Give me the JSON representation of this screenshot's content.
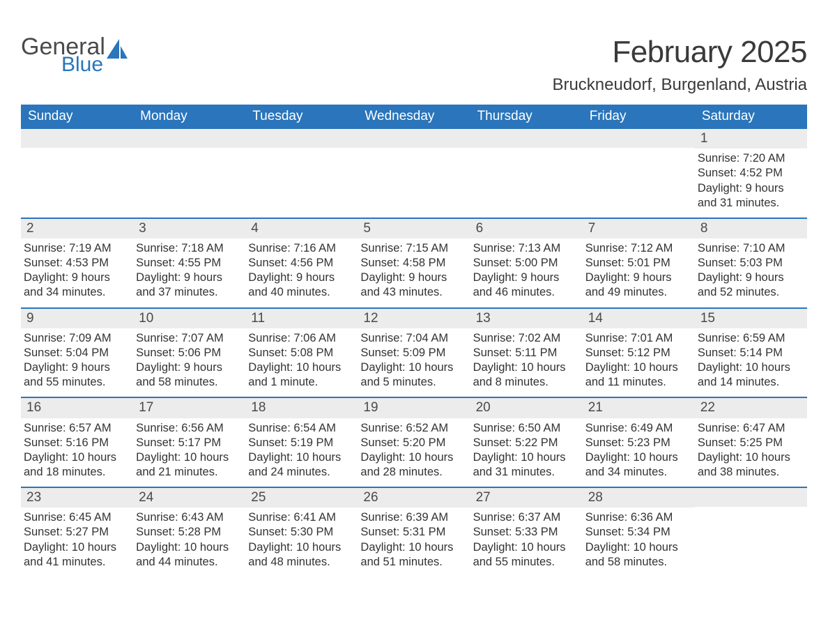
{
  "logo": {
    "word1": "General",
    "word2": "Blue"
  },
  "title": "February 2025",
  "location": "Bruckneudorf, Burgenland, Austria",
  "colors": {
    "brand_blue": "#2a75bb",
    "header_text": "#ffffff",
    "bar_bg": "#ececec",
    "text": "#333333",
    "title_text": "#3a3a3a"
  },
  "fonts": {
    "title_size_pt": 44,
    "location_size_pt": 24,
    "dayheader_size_pt": 19,
    "body_size_pt": 16.5
  },
  "day_headers": [
    "Sunday",
    "Monday",
    "Tuesday",
    "Wednesday",
    "Thursday",
    "Friday",
    "Saturday"
  ],
  "weeks": [
    [
      null,
      null,
      null,
      null,
      null,
      null,
      {
        "n": "1",
        "sr": "Sunrise: 7:20 AM",
        "ss": "Sunset: 4:52 PM",
        "dl": "Daylight: 9 hours and 31 minutes."
      }
    ],
    [
      {
        "n": "2",
        "sr": "Sunrise: 7:19 AM",
        "ss": "Sunset: 4:53 PM",
        "dl": "Daylight: 9 hours and 34 minutes."
      },
      {
        "n": "3",
        "sr": "Sunrise: 7:18 AM",
        "ss": "Sunset: 4:55 PM",
        "dl": "Daylight: 9 hours and 37 minutes."
      },
      {
        "n": "4",
        "sr": "Sunrise: 7:16 AM",
        "ss": "Sunset: 4:56 PM",
        "dl": "Daylight: 9 hours and 40 minutes."
      },
      {
        "n": "5",
        "sr": "Sunrise: 7:15 AM",
        "ss": "Sunset: 4:58 PM",
        "dl": "Daylight: 9 hours and 43 minutes."
      },
      {
        "n": "6",
        "sr": "Sunrise: 7:13 AM",
        "ss": "Sunset: 5:00 PM",
        "dl": "Daylight: 9 hours and 46 minutes."
      },
      {
        "n": "7",
        "sr": "Sunrise: 7:12 AM",
        "ss": "Sunset: 5:01 PM",
        "dl": "Daylight: 9 hours and 49 minutes."
      },
      {
        "n": "8",
        "sr": "Sunrise: 7:10 AM",
        "ss": "Sunset: 5:03 PM",
        "dl": "Daylight: 9 hours and 52 minutes."
      }
    ],
    [
      {
        "n": "9",
        "sr": "Sunrise: 7:09 AM",
        "ss": "Sunset: 5:04 PM",
        "dl": "Daylight: 9 hours and 55 minutes."
      },
      {
        "n": "10",
        "sr": "Sunrise: 7:07 AM",
        "ss": "Sunset: 5:06 PM",
        "dl": "Daylight: 9 hours and 58 minutes."
      },
      {
        "n": "11",
        "sr": "Sunrise: 7:06 AM",
        "ss": "Sunset: 5:08 PM",
        "dl": "Daylight: 10 hours and 1 minute."
      },
      {
        "n": "12",
        "sr": "Sunrise: 7:04 AM",
        "ss": "Sunset: 5:09 PM",
        "dl": "Daylight: 10 hours and 5 minutes."
      },
      {
        "n": "13",
        "sr": "Sunrise: 7:02 AM",
        "ss": "Sunset: 5:11 PM",
        "dl": "Daylight: 10 hours and 8 minutes."
      },
      {
        "n": "14",
        "sr": "Sunrise: 7:01 AM",
        "ss": "Sunset: 5:12 PM",
        "dl": "Daylight: 10 hours and 11 minutes."
      },
      {
        "n": "15",
        "sr": "Sunrise: 6:59 AM",
        "ss": "Sunset: 5:14 PM",
        "dl": "Daylight: 10 hours and 14 minutes."
      }
    ],
    [
      {
        "n": "16",
        "sr": "Sunrise: 6:57 AM",
        "ss": "Sunset: 5:16 PM",
        "dl": "Daylight: 10 hours and 18 minutes."
      },
      {
        "n": "17",
        "sr": "Sunrise: 6:56 AM",
        "ss": "Sunset: 5:17 PM",
        "dl": "Daylight: 10 hours and 21 minutes."
      },
      {
        "n": "18",
        "sr": "Sunrise: 6:54 AM",
        "ss": "Sunset: 5:19 PM",
        "dl": "Daylight: 10 hours and 24 minutes."
      },
      {
        "n": "19",
        "sr": "Sunrise: 6:52 AM",
        "ss": "Sunset: 5:20 PM",
        "dl": "Daylight: 10 hours and 28 minutes."
      },
      {
        "n": "20",
        "sr": "Sunrise: 6:50 AM",
        "ss": "Sunset: 5:22 PM",
        "dl": "Daylight: 10 hours and 31 minutes."
      },
      {
        "n": "21",
        "sr": "Sunrise: 6:49 AM",
        "ss": "Sunset: 5:23 PM",
        "dl": "Daylight: 10 hours and 34 minutes."
      },
      {
        "n": "22",
        "sr": "Sunrise: 6:47 AM",
        "ss": "Sunset: 5:25 PM",
        "dl": "Daylight: 10 hours and 38 minutes."
      }
    ],
    [
      {
        "n": "23",
        "sr": "Sunrise: 6:45 AM",
        "ss": "Sunset: 5:27 PM",
        "dl": "Daylight: 10 hours and 41 minutes."
      },
      {
        "n": "24",
        "sr": "Sunrise: 6:43 AM",
        "ss": "Sunset: 5:28 PM",
        "dl": "Daylight: 10 hours and 44 minutes."
      },
      {
        "n": "25",
        "sr": "Sunrise: 6:41 AM",
        "ss": "Sunset: 5:30 PM",
        "dl": "Daylight: 10 hours and 48 minutes."
      },
      {
        "n": "26",
        "sr": "Sunrise: 6:39 AM",
        "ss": "Sunset: 5:31 PM",
        "dl": "Daylight: 10 hours and 51 minutes."
      },
      {
        "n": "27",
        "sr": "Sunrise: 6:37 AM",
        "ss": "Sunset: 5:33 PM",
        "dl": "Daylight: 10 hours and 55 minutes."
      },
      {
        "n": "28",
        "sr": "Sunrise: 6:36 AM",
        "ss": "Sunset: 5:34 PM",
        "dl": "Daylight: 10 hours and 58 minutes."
      },
      null
    ]
  ]
}
